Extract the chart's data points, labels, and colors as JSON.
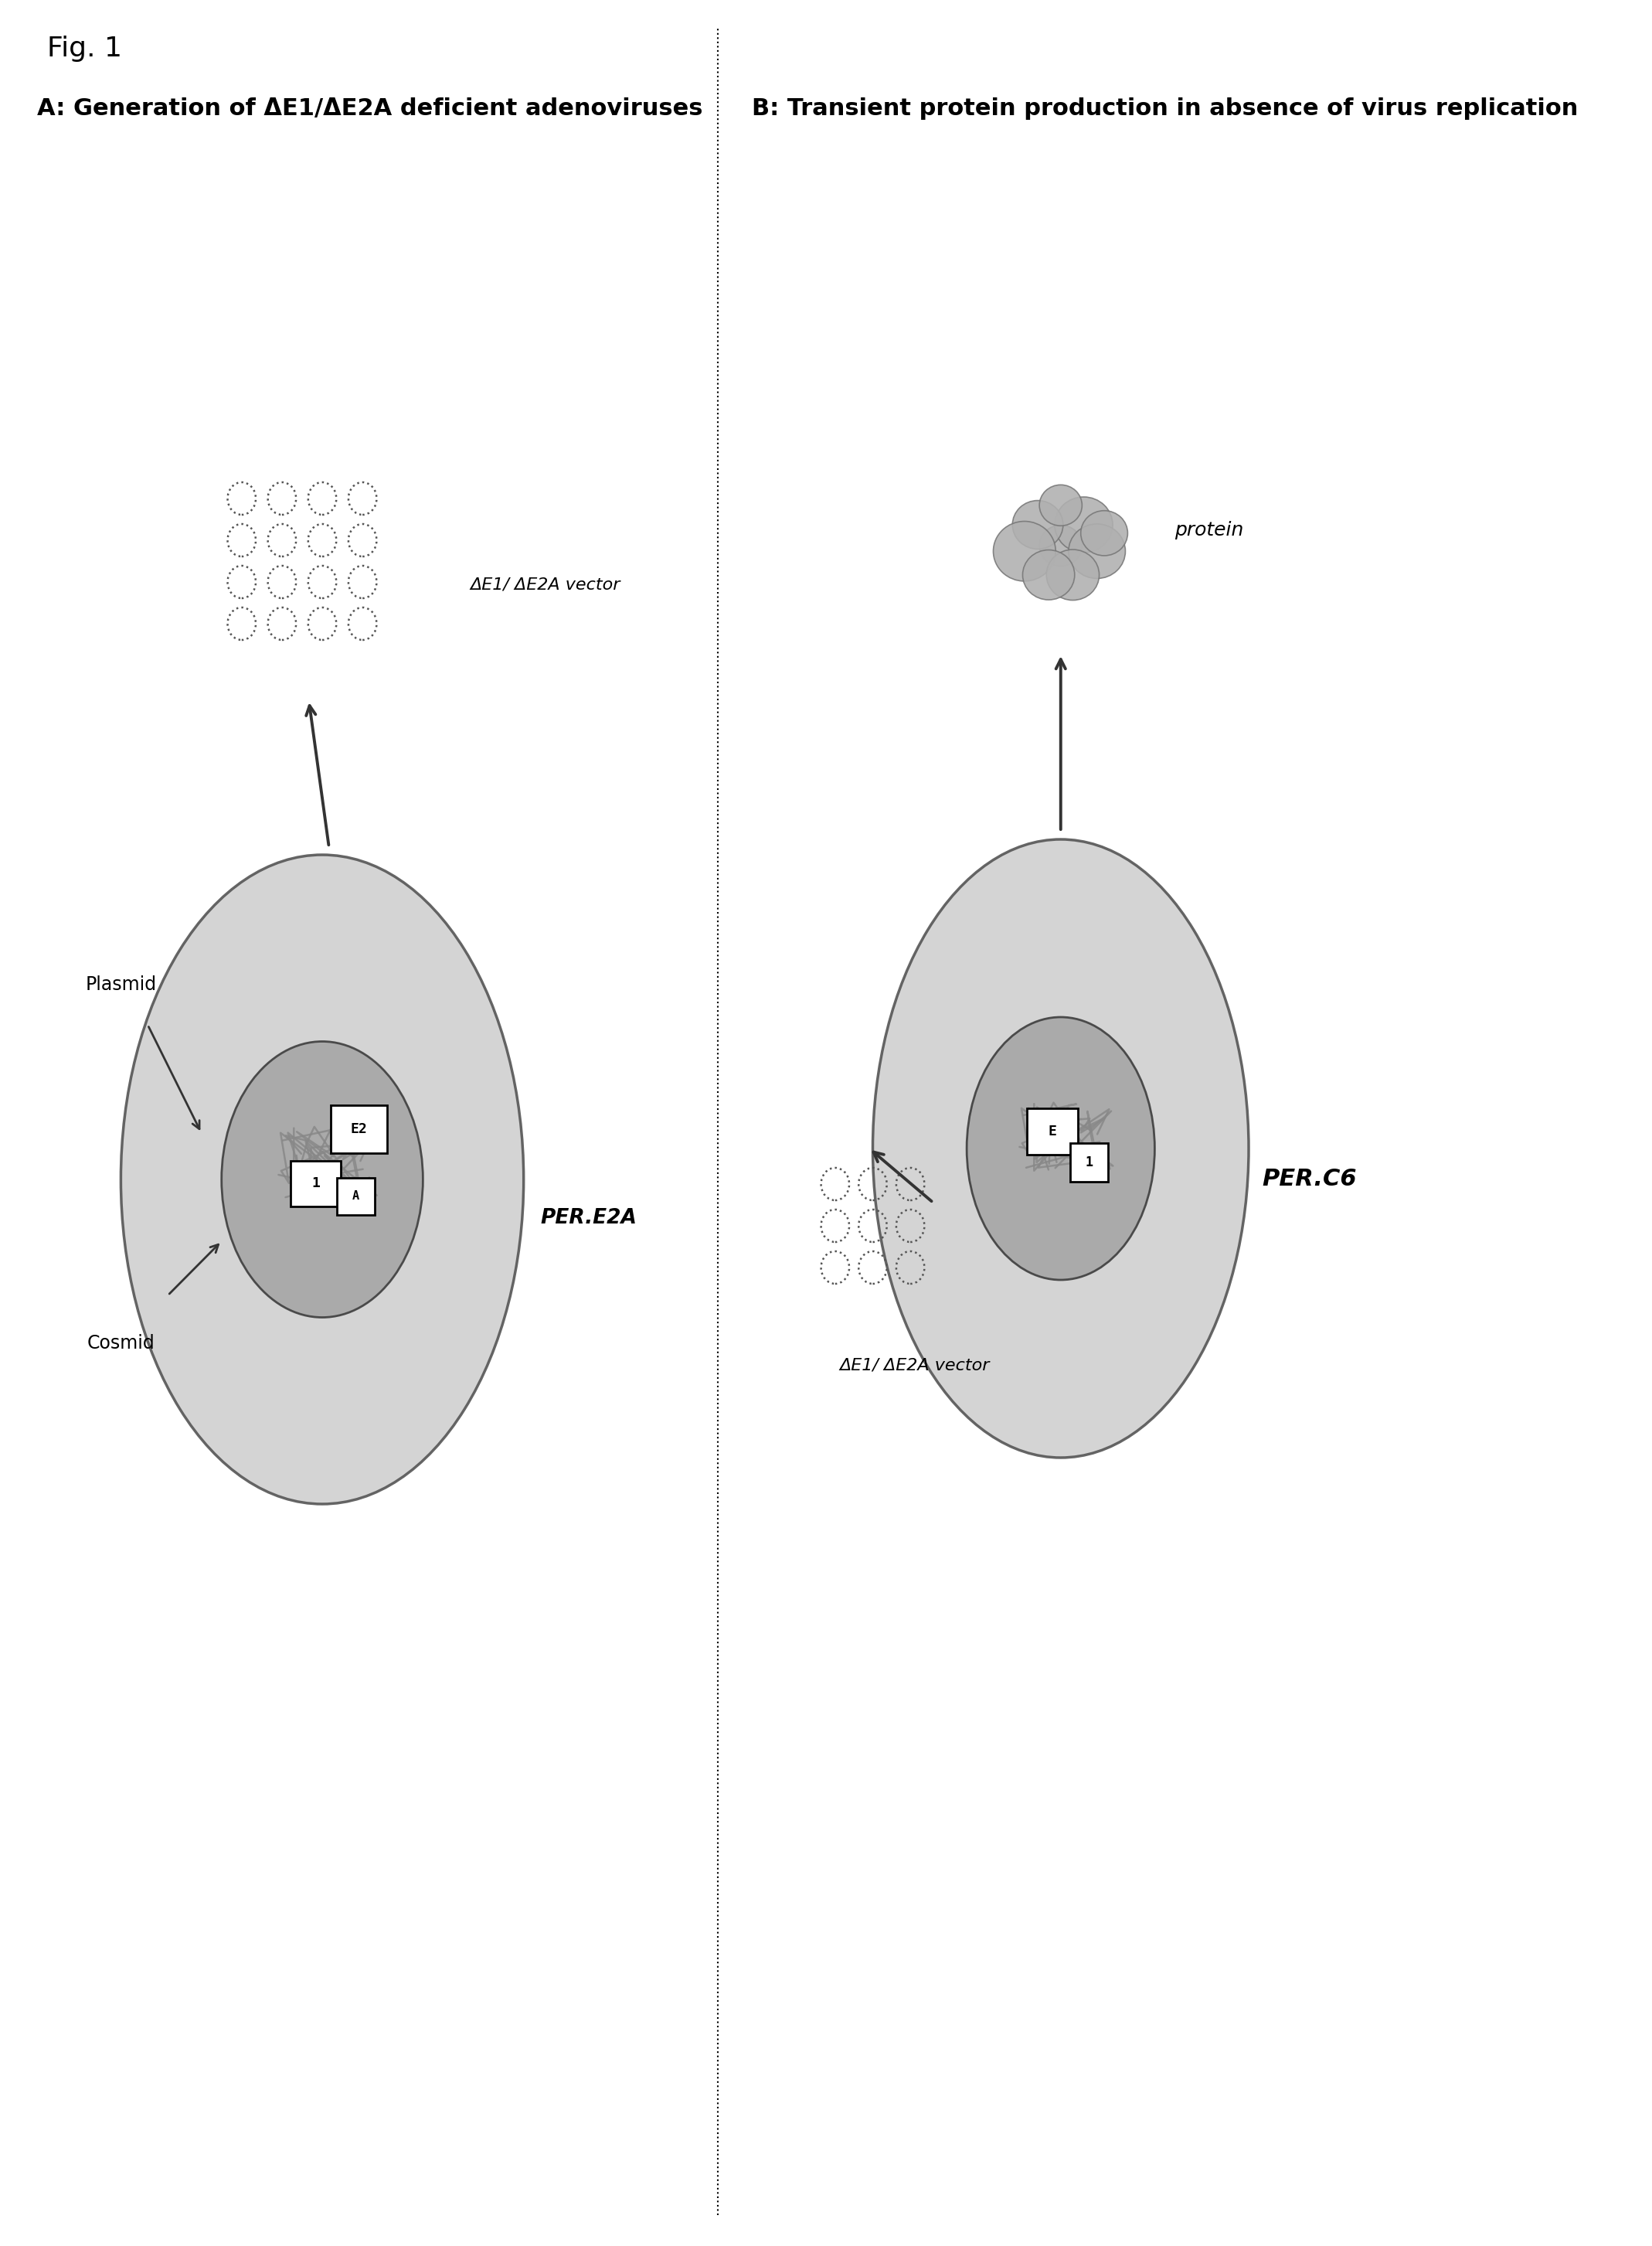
{
  "fig_label": "Fig. 1",
  "panel_A_title": "A: Generation of ΔE1/ΔE2A deficient adenoviruses",
  "panel_B_title": "B: Transient protein production in absence of virus replication",
  "cell_A_label": "PER.E2A",
  "cell_B_label": "PER.C6",
  "vector_label_A": "ΔE1/ ΔE2A vector",
  "vector_label_B": "ΔE1/ ΔE2A vector",
  "protein_label": "protein",
  "plasmid_label": "Plasmid",
  "cosmid_label": "Cosmid",
  "bg_color": "#ffffff",
  "cell_outer_color": "#d0d0d0",
  "cell_inner_color": "#a8a8a8",
  "box_color": "#ffffff",
  "box_edge_color": "#000000",
  "dna_color": "#888888",
  "virus_edge_color": "#555555",
  "arrow_color": "#333333",
  "protein_blob_color": "#b0b0b0"
}
